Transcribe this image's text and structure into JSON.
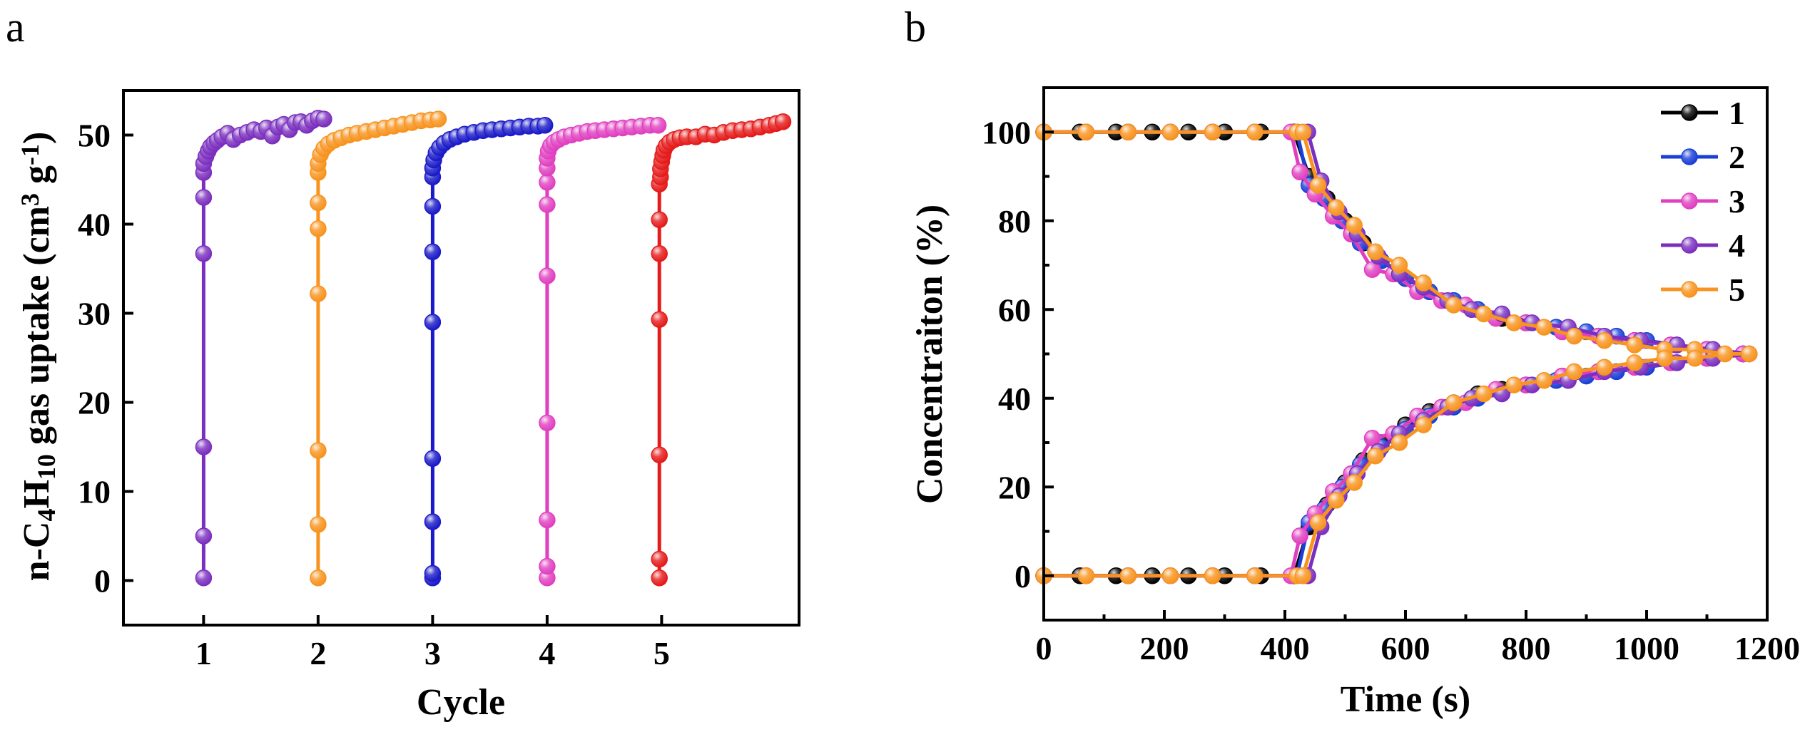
{
  "panels": [
    {
      "letter": "a",
      "chart_data": {
        "type": "scatter",
        "title": "",
        "xlabel": "Cycle",
        "ylabel_parts": [
          "n-C",
          "4",
          "H",
          "10",
          " gas uptake (cm",
          "3",
          " g",
          "-1",
          ")"
        ],
        "xlim": [
          0.3,
          6.2
        ],
        "ylim": [
          -5,
          55
        ],
        "xticks": [
          1,
          2,
          3,
          4,
          5
        ],
        "yticks": [
          0,
          10,
          20,
          30,
          40,
          50
        ],
        "grid": false,
        "legend": "none",
        "series": [
          {
            "color": "#7B2FBE",
            "x": [
              1.0,
              1.0,
              1.0,
              1.0,
              1.0,
              1.0,
              1.0,
              1.02,
              1.04,
              1.06,
              1.09,
              1.12,
              1.16,
              1.21,
              1.26,
              1.32,
              1.38,
              1.44,
              1.5,
              1.55,
              1.6,
              1.65,
              1.7,
              1.75,
              1.8,
              1.85,
              1.9,
              1.95,
              2.0,
              2.05
            ],
            "y": [
              0.3,
              5,
              15,
              36.7,
              43,
              45.8,
              46.8,
              47.6,
              48.2,
              48.7,
              49.1,
              49.4,
              49.8,
              50.2,
              49.5,
              50.0,
              50.3,
              50.6,
              50.4,
              50.8,
              49.9,
              50.9,
              51.2,
              50.6,
              51.4,
              51.5,
              51.1,
              51.6,
              51.9,
              51.8
            ]
          },
          {
            "color": "#F7931E",
            "x": [
              2.0,
              2.0,
              2.0,
              2.0,
              2.0,
              2.0,
              2.0,
              2.0,
              2.02,
              2.05,
              2.09,
              2.14,
              2.2,
              2.27,
              2.34,
              2.42,
              2.5,
              2.58,
              2.66,
              2.74,
              2.82,
              2.9,
              2.98,
              3.05
            ],
            "y": [
              0.3,
              6.3,
              14.6,
              32.2,
              39.5,
              42.4,
              45.8,
              46.8,
              47.8,
              48.5,
              49.0,
              49.4,
              49.7,
              50.0,
              50.2,
              50.4,
              50.6,
              50.8,
              51.0,
              51.2,
              51.4,
              51.6,
              51.7,
              51.8
            ]
          },
          {
            "color": "#1A1AC8",
            "x": [
              3.0,
              3.0,
              3.0,
              3.0,
              3.0,
              3.0,
              3.0,
              3.0,
              3.0,
              3.01,
              3.03,
              3.06,
              3.1,
              3.15,
              3.21,
              3.28,
              3.36,
              3.44,
              3.52,
              3.6,
              3.68,
              3.76,
              3.84,
              3.92,
              3.98
            ],
            "y": [
              0.3,
              0.8,
              6.6,
              13.7,
              29,
              36.9,
              42,
              45.3,
              46.3,
              47.2,
              48.0,
              48.6,
              49.1,
              49.5,
              49.8,
              50.1,
              50.3,
              50.5,
              50.6,
              50.7,
              50.8,
              50.9,
              51.0,
              51.0,
              51.1
            ]
          },
          {
            "color": "#E040C0",
            "x": [
              4.0,
              4.0,
              4.0,
              4.0,
              4.0,
              4.0,
              4.0,
              4.0,
              4.0,
              4.01,
              4.03,
              4.06,
              4.1,
              4.15,
              4.21,
              4.28,
              4.35,
              4.42,
              4.5,
              4.58,
              4.66,
              4.74,
              4.82,
              4.9,
              4.97
            ],
            "y": [
              0.3,
              1.6,
              6.8,
              17.7,
              34.2,
              42.2,
              44.7,
              46.3,
              47.4,
              48.2,
              48.8,
              49.2,
              49.5,
              49.8,
              50.0,
              50.2,
              50.4,
              50.5,
              50.6,
              50.7,
              50.8,
              50.9,
              51.0,
              51.1,
              51.1
            ]
          },
          {
            "color": "#E51A1A",
            "x": [
              4.98,
              4.98,
              4.98,
              4.98,
              4.98,
              4.98,
              4.98,
              4.99,
              4.99,
              5.0,
              5.01,
              5.02,
              5.04,
              5.07,
              5.11,
              5.16,
              5.22,
              5.3,
              5.38,
              5.46,
              5.54,
              5.62,
              5.7,
              5.78,
              5.86,
              5.94,
              6.0,
              6.06
            ],
            "y": [
              0.3,
              2.4,
              14.1,
              29.3,
              36.7,
              40.5,
              44.5,
              45.3,
              46.2,
              47.0,
              47.7,
              48.3,
              48.8,
              49.2,
              49.5,
              49.7,
              49.8,
              49.8,
              50.1,
              50.0,
              50.3,
              50.5,
              50.6,
              50.7,
              50.9,
              51.1,
              51.3,
              51.5
            ]
          }
        ]
      }
    },
    {
      "letter": "b",
      "chart_data": {
        "type": "line",
        "title": "",
        "xlabel": "Time (s)",
        "ylabel": "Concentraiton (%)",
        "xlim": [
          0,
          1200
        ],
        "ylim": [
          -10,
          110
        ],
        "xticks": [
          0,
          200,
          400,
          600,
          800,
          1000,
          1200
        ],
        "yticks": [
          0,
          20,
          40,
          60,
          80,
          100
        ],
        "grid": false,
        "legend": "top-right",
        "series": [
          {
            "name": "1",
            "color": "#000000",
            "upper": {
              "x": [
                0,
                60,
                120,
                180,
                240,
                300,
                360,
                415,
                440,
                470,
                500,
                530,
                560,
                600,
                640,
                680,
                720,
                760,
                800,
                860,
                920,
                980,
                1040,
                1100,
                1160
              ],
              "y": [
                100,
                100,
                100,
                100,
                100,
                100,
                100,
                100,
                90,
                85,
                80,
                75,
                71,
                67,
                64,
                62,
                60,
                58,
                57,
                55,
                54,
                53,
                52,
                51,
                50
              ]
            },
            "lower": {
              "x": [
                0,
                60,
                120,
                180,
                240,
                300,
                360,
                415,
                440,
                470,
                500,
                530,
                560,
                600,
                640,
                680,
                720,
                760,
                800,
                860,
                920,
                980,
                1040,
                1100,
                1160
              ],
              "y": [
                0,
                0,
                0,
                0,
                0,
                0,
                0,
                0,
                11,
                16,
                21,
                26,
                30,
                34,
                37,
                39,
                41,
                42,
                43,
                45,
                46,
                47,
                48,
                49,
                50
              ]
            }
          },
          {
            "name": "2",
            "color": "#1A3FD6",
            "upper": {
              "x": [
                0,
                70,
                140,
                210,
                280,
                350,
                420,
                440,
                465,
                495,
                525,
                560,
                600,
                640,
                680,
                720,
                760,
                800,
                850,
                900,
                950,
                1000,
                1050,
                1100,
                1160
              ],
              "y": [
                100,
                100,
                100,
                100,
                100,
                100,
                100,
                88,
                85,
                80,
                75,
                71,
                67,
                64,
                62,
                60,
                59,
                57,
                56,
                55,
                54,
                53,
                52,
                51,
                50
              ]
            },
            "lower": {
              "x": [
                0,
                70,
                140,
                210,
                280,
                350,
                420,
                440,
                465,
                495,
                525,
                560,
                600,
                640,
                680,
                720,
                760,
                800,
                850,
                900,
                950,
                1000,
                1050,
                1100,
                1160
              ],
              "y": [
                0,
                0,
                0,
                0,
                0,
                0,
                0,
                12,
                15,
                20,
                25,
                29,
                33,
                36,
                38,
                40,
                41,
                43,
                44,
                45,
                46,
                47,
                48,
                49,
                50
              ]
            }
          },
          {
            "name": "3",
            "color": "#E040C0",
            "upper": {
              "x": [
                0,
                70,
                140,
                210,
                280,
                350,
                410,
                425,
                450,
                480,
                510,
                545,
                580,
                620,
                660,
                700,
                750,
                800,
                860,
                920,
                980,
                1040,
                1100,
                1160
              ],
              "y": [
                100,
                100,
                100,
                100,
                100,
                100,
                100,
                91,
                86,
                81,
                77,
                69,
                68,
                64,
                62,
                61,
                58,
                57,
                55,
                54,
                53,
                52,
                51,
                50
              ]
            },
            "lower": {
              "x": [
                0,
                70,
                140,
                210,
                280,
                350,
                410,
                425,
                450,
                480,
                510,
                545,
                580,
                620,
                660,
                700,
                750,
                800,
                860,
                920,
                980,
                1040,
                1100,
                1160
              ],
              "y": [
                0,
                0,
                0,
                0,
                0,
                0,
                0,
                9,
                14,
                19,
                23,
                31,
                32,
                36,
                38,
                39,
                42,
                43,
                45,
                46,
                47,
                48,
                49,
                50
              ]
            }
          },
          {
            "name": "4",
            "color": "#7B2FBE",
            "upper": {
              "x": [
                0,
                70,
                140,
                210,
                280,
                350,
                420,
                438,
                460,
                490,
                520,
                555,
                590,
                630,
                670,
                710,
                760,
                810,
                870,
                930,
                990,
                1050,
                1110,
                1170
              ],
              "y": [
                100,
                100,
                100,
                100,
                100,
                100,
                100,
                100,
                89,
                82,
                77,
                72,
                68,
                65,
                62,
                60,
                59,
                57,
                56,
                54,
                53,
                52,
                51,
                50
              ]
            },
            "lower": {
              "x": [
                0,
                70,
                140,
                210,
                280,
                350,
                420,
                438,
                460,
                490,
                520,
                555,
                590,
                630,
                670,
                710,
                760,
                810,
                870,
                930,
                990,
                1050,
                1110,
                1170
              ],
              "y": [
                0,
                0,
                0,
                0,
                0,
                0,
                0,
                0,
                11,
                18,
                23,
                28,
                32,
                35,
                38,
                40,
                41,
                43,
                44,
                46,
                47,
                48,
                49,
                50
              ]
            }
          },
          {
            "name": "5",
            "color": "#F7931E",
            "upper": {
              "x": [
                0,
                70,
                140,
                210,
                280,
                350,
                420,
                430,
                455,
                485,
                515,
                550,
                590,
                630,
                680,
                730,
                780,
                830,
                880,
                930,
                980,
                1030,
                1080,
                1130,
                1170
              ],
              "y": [
                100,
                100,
                100,
                100,
                100,
                100,
                100,
                100,
                88,
                83,
                79,
                73,
                70,
                66,
                61,
                59,
                57,
                56,
                54,
                53,
                52,
                51,
                51,
                50,
                50
              ]
            },
            "lower": {
              "x": [
                0,
                70,
                140,
                210,
                280,
                350,
                420,
                430,
                455,
                485,
                515,
                550,
                590,
                630,
                680,
                730,
                780,
                830,
                880,
                930,
                980,
                1030,
                1080,
                1130,
                1170
              ],
              "y": [
                0,
                0,
                0,
                0,
                0,
                0,
                0,
                0,
                12,
                17,
                21,
                27,
                30,
                34,
                39,
                41,
                43,
                44,
                46,
                47,
                48,
                49,
                49,
                50,
                50
              ]
            }
          }
        ]
      }
    }
  ]
}
